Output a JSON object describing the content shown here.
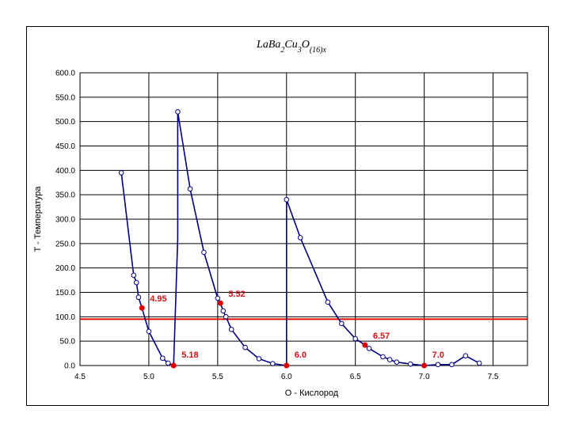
{
  "chart_data": {
    "type": "scatter",
    "title": {
      "parts": [
        {
          "text": "LaBa",
          "sub": false
        },
        {
          "text": "2",
          "sub": true
        },
        {
          "text": "Cu",
          "sub": false
        },
        {
          "text": "3",
          "sub": true
        },
        {
          "text": "O",
          "sub": false
        },
        {
          "text": "(16)",
          "sub": true
        },
        {
          "text": "x",
          "sub": true
        }
      ]
    },
    "xlabel": "O -  Кислород",
    "ylabel": "T - Температура",
    "xlim": [
      4.5,
      7.75
    ],
    "ylim": [
      0,
      600
    ],
    "x_ticks": [
      {
        "value": 4.5,
        "label": "4.5"
      },
      {
        "value": 5.0,
        "label": "5.0"
      },
      {
        "value": 5.5,
        "label": "5.5"
      },
      {
        "value": 6.0,
        "label": "6.0"
      },
      {
        "value": 6.5,
        "label": "6.5"
      },
      {
        "value": 7.0,
        "label": "7.0"
      },
      {
        "value": 7.5,
        "label": "7.5"
      }
    ],
    "y_ticks": [
      {
        "value": 0,
        "label": "0.0"
      },
      {
        "value": 50,
        "label": "50.0"
      },
      {
        "value": 100,
        "label": "100.0"
      },
      {
        "value": 150,
        "label": "150.0"
      },
      {
        "value": 200,
        "label": "200.0"
      },
      {
        "value": 250,
        "label": "250.0"
      },
      {
        "value": 300,
        "label": "300.0"
      },
      {
        "value": 350,
        "label": "350.0"
      },
      {
        "value": 400,
        "label": "400.0"
      },
      {
        "value": 450,
        "label": "450.0"
      },
      {
        "value": 500,
        "label": "500.0"
      },
      {
        "value": 550,
        "label": "550.0"
      },
      {
        "value": 600,
        "label": "600.0"
      }
    ],
    "grid": true,
    "series": [
      {
        "color": "#000080",
        "points": [
          [
            4.8,
            395
          ],
          [
            4.89,
            185
          ],
          [
            4.91,
            170
          ],
          [
            4.925,
            140
          ],
          [
            4.95,
            118
          ],
          [
            5.0,
            70
          ],
          [
            5.1,
            15
          ],
          [
            5.14,
            5
          ],
          [
            5.18,
            0
          ],
          [
            5.21,
            260
          ],
          [
            5.21,
            520
          ],
          [
            5.3,
            362
          ],
          [
            5.4,
            232
          ],
          [
            5.5,
            138
          ],
          [
            5.52,
            128
          ],
          [
            5.54,
            112
          ],
          [
            5.56,
            100
          ],
          [
            5.6,
            74
          ],
          [
            5.7,
            37
          ],
          [
            5.8,
            14
          ],
          [
            5.9,
            4
          ],
          [
            6.0,
            0
          ],
          [
            6.0,
            175
          ],
          [
            6.0,
            340
          ],
          [
            6.1,
            262
          ],
          [
            6.3,
            130
          ],
          [
            6.4,
            86
          ],
          [
            6.5,
            55
          ],
          [
            6.57,
            42
          ],
          [
            6.6,
            35
          ],
          [
            6.7,
            18
          ],
          [
            6.75,
            12
          ],
          [
            6.8,
            7
          ],
          [
            6.9,
            3
          ],
          [
            7.0,
            0
          ],
          [
            7.1,
            2
          ],
          [
            7.2,
            2
          ],
          [
            7.3,
            20
          ],
          [
            7.4,
            5
          ]
        ],
        "markers": [
          [
            4.8,
            395
          ],
          [
            4.89,
            185
          ],
          [
            4.91,
            170
          ],
          [
            4.925,
            140
          ],
          [
            5.0,
            70
          ],
          [
            5.1,
            15
          ],
          [
            5.14,
            5
          ],
          [
            5.21,
            520
          ],
          [
            5.3,
            362
          ],
          [
            5.4,
            232
          ],
          [
            5.5,
            138
          ],
          [
            5.54,
            112
          ],
          [
            5.56,
            100
          ],
          [
            5.6,
            74
          ],
          [
            5.7,
            37
          ],
          [
            5.8,
            14
          ],
          [
            5.9,
            4
          ],
          [
            6.0,
            340
          ],
          [
            6.1,
            262
          ],
          [
            6.3,
            130
          ],
          [
            6.4,
            86
          ],
          [
            6.5,
            55
          ],
          [
            6.6,
            35
          ],
          [
            6.7,
            18
          ],
          [
            6.75,
            12
          ],
          [
            6.8,
            7
          ],
          [
            6.9,
            3
          ],
          [
            7.1,
            2
          ],
          [
            7.2,
            2
          ],
          [
            7.3,
            20
          ],
          [
            7.4,
            5
          ]
        ]
      }
    ],
    "highlight_points": [
      {
        "x": 4.95,
        "y": 118,
        "label": "4.95"
      },
      {
        "x": 5.18,
        "y": 0,
        "label": "5.18"
      },
      {
        "x": 5.52,
        "y": 128,
        "label": "5.52"
      },
      {
        "x": 6.0,
        "y": 0,
        "label": "6.0"
      },
      {
        "x": 6.57,
        "y": 42,
        "label": "6.57"
      },
      {
        "x": 7.0,
        "y": 0,
        "label": "7.0"
      }
    ],
    "reference_line": {
      "y": 95,
      "color": "#dc0000"
    },
    "colors": {
      "series": "#000080",
      "marker_fill": "#ffffff",
      "highlight": "#dc0000",
      "annotation": "#d21414"
    }
  }
}
